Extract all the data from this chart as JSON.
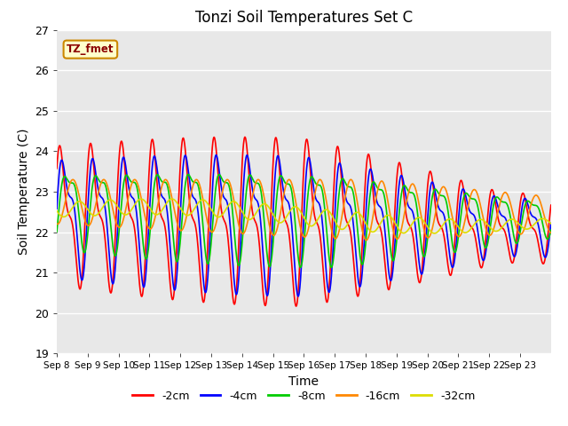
{
  "title": "Tonzi Soil Temperatures Set C",
  "xlabel": "Time",
  "ylabel": "Soil Temperature (C)",
  "ylim": [
    19.0,
    27.0
  ],
  "yticks": [
    19.0,
    20.0,
    21.0,
    22.0,
    23.0,
    24.0,
    25.0,
    26.0,
    27.0
  ],
  "xtick_labels": [
    "Sep 8",
    "Sep 9",
    "Sep 10",
    "Sep 11",
    "Sep 12",
    "Sep 13",
    "Sep 14",
    "Sep 15",
    "Sep 16",
    "Sep 17",
    "Sep 18",
    "Sep 19",
    "Sep 20",
    "Sep 21",
    "Sep 22",
    "Sep 23"
  ],
  "series_colors": [
    "#ff0000",
    "#0000ff",
    "#00cc00",
    "#ff8800",
    "#dddd00"
  ],
  "series_labels": [
    "-2cm",
    "-4cm",
    "-8cm",
    "-16cm",
    "-32cm"
  ],
  "line_width": 1.2,
  "annotation_text": "TZ_fmet",
  "bg_color": "#e8e8e8",
  "fig_bg": "#ffffff",
  "grid_color": "#ffffff",
  "n_days": 16,
  "points_per_day": 96
}
